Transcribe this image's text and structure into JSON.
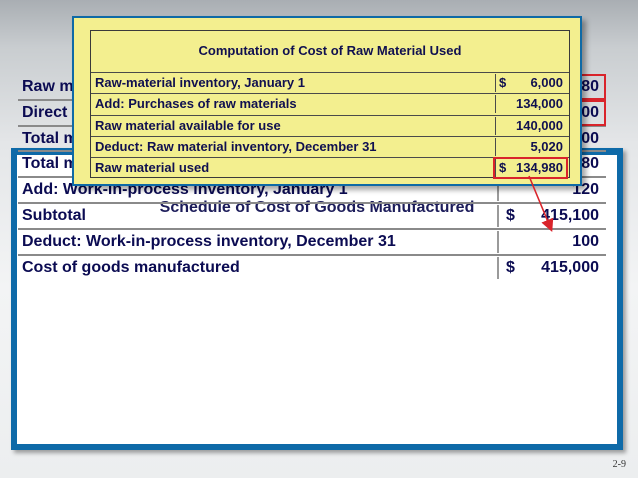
{
  "computation": {
    "title": "Computation of Cost of Raw Material Used",
    "rows": [
      {
        "label": "Raw-material inventory, January 1",
        "currency": "$",
        "amount": "6,000"
      },
      {
        "label": "Add:  Purchases of raw materials",
        "currency": "",
        "amount": "134,000"
      },
      {
        "label": "Raw material available for use",
        "currency": "",
        "amount": "140,000"
      },
      {
        "label": "Deduct:  Raw material inventory, December 31",
        "currency": "",
        "amount": "5,020"
      },
      {
        "label": "Raw material used",
        "currency": "$",
        "amount": "134,980"
      }
    ]
  },
  "schedule": {
    "title": "Schedule of Cost of Goods Manufactured",
    "rows": [
      {
        "label": "Raw material used",
        "currency": "$",
        "amount": "134,980"
      },
      {
        "label": "Direct labor",
        "currency": "",
        "amount": "50,000"
      },
      {
        "label": "Total manufacturing overhead",
        "currency": "",
        "amount": "230,000"
      },
      {
        "label": "Total manufacturing costs",
        "currency": "$",
        "amount": "414,980"
      },
      {
        "label": "Add:  Work-in-process inventory, January 1",
        "currency": "",
        "amount": "120"
      },
      {
        "label": "Subtotal",
        "currency": "$",
        "amount": "415,100"
      },
      {
        "label": "Deduct:  Work-in-process inventory, December 31",
        "currency": "",
        "amount": "100"
      },
      {
        "label": "Cost of goods manufactured",
        "currency": "$",
        "amount": "415,000"
      }
    ]
  },
  "colors": {
    "highlight": "#d9242b",
    "frame": "#0e6aa8",
    "note": "#f3ef8f"
  },
  "slide_number": "2-9"
}
